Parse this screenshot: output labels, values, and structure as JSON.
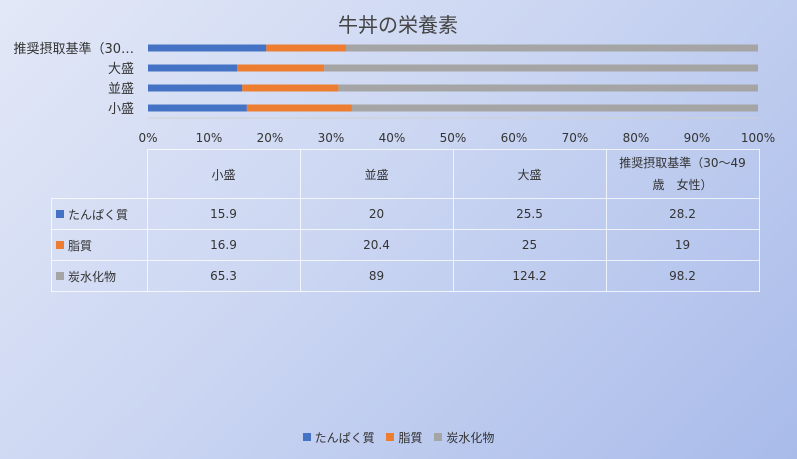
{
  "chart_data": {
    "type": "bar",
    "orientation": "horizontal",
    "stacking": "percent",
    "title": "牛丼の栄養素",
    "categories": [
      "小盛",
      "並盛",
      "大盛",
      "推奨摂取基準（30～49歳　女性）"
    ],
    "category_labels_display": [
      "小盛",
      "並盛",
      "大盛",
      "推奨摂取基準（30…"
    ],
    "series": [
      {
        "name": "たんぱく質",
        "values": [
          15.9,
          20,
          25.5,
          28.2
        ],
        "color": "#4472C4"
      },
      {
        "name": "脂質",
        "values": [
          16.9,
          20.4,
          25,
          19
        ],
        "color": "#ED7D31"
      },
      {
        "name": "炭水化物",
        "values": [
          65.3,
          89,
          124.2,
          98.2
        ],
        "color": "#A5A5A5"
      }
    ],
    "xlim": [
      0,
      100
    ],
    "xticks": [
      "0%",
      "10%",
      "20%",
      "30%",
      "40%",
      "50%",
      "60%",
      "70%",
      "80%",
      "90%",
      "100%"
    ],
    "grid": false,
    "legend": "bottom",
    "data_table": {
      "headers": [
        "小盛",
        "並盛",
        "大盛",
        "推奨摂取基準（30～49",
        "歳　女性）"
      ]
    }
  }
}
